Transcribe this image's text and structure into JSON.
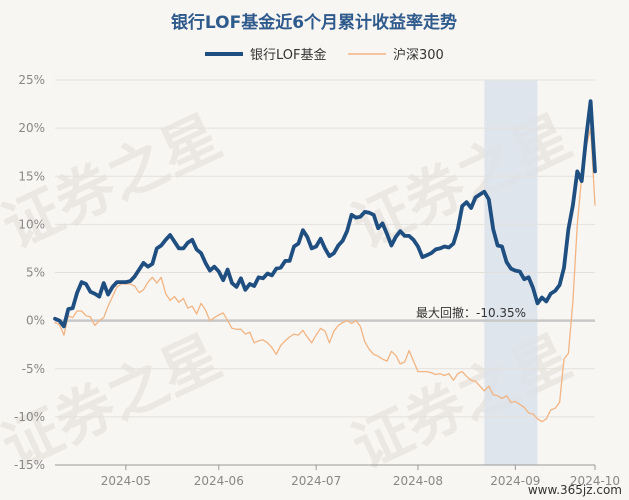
{
  "chart_data": {
    "type": "line",
    "title": "银行LOF基金近6个月累计收益率走势",
    "series": [
      {
        "name": "银行LOF基金",
        "color": "#1f4e80",
        "values": [
          [
            0,
            0.2
          ],
          [
            1,
            0
          ],
          [
            2,
            -0.6
          ],
          [
            3,
            1.2
          ],
          [
            4,
            1.3
          ],
          [
            5,
            2.9
          ],
          [
            6,
            4
          ],
          [
            7,
            3.8
          ],
          [
            8,
            3
          ],
          [
            9,
            2.8
          ],
          [
            10,
            2.5
          ],
          [
            11,
            3.9
          ],
          [
            12,
            2.7
          ],
          [
            13,
            3.5
          ],
          [
            14,
            4
          ],
          [
            15,
            4
          ],
          [
            16,
            4
          ],
          [
            17,
            4.1
          ],
          [
            18,
            4.6
          ],
          [
            19,
            5.3
          ],
          [
            20,
            6
          ],
          [
            21,
            5.6
          ],
          [
            22,
            5.9
          ],
          [
            23,
            7.5
          ],
          [
            24,
            7.8
          ],
          [
            25,
            8.4
          ],
          [
            26,
            8.9
          ],
          [
            27,
            8.2
          ],
          [
            28,
            7.5
          ],
          [
            29,
            7.5
          ],
          [
            30,
            8.1
          ],
          [
            31,
            8.4
          ],
          [
            32,
            7.4
          ],
          [
            33,
            7
          ],
          [
            34,
            6
          ],
          [
            35,
            5.2
          ],
          [
            36,
            5.6
          ],
          [
            37,
            5.1
          ],
          [
            38,
            4.2
          ],
          [
            39,
            5.3
          ],
          [
            40,
            3.9
          ],
          [
            41,
            3.5
          ],
          [
            42,
            4.4
          ],
          [
            43,
            3.2
          ],
          [
            44,
            3.8
          ],
          [
            45,
            3.6
          ],
          [
            46,
            4.5
          ],
          [
            47,
            4.4
          ],
          [
            48,
            4.9
          ],
          [
            49,
            4.7
          ],
          [
            50,
            5.4
          ],
          [
            51,
            5.5
          ],
          [
            52,
            6.2
          ],
          [
            53,
            6.2
          ],
          [
            54,
            7.7
          ],
          [
            55,
            8
          ],
          [
            56,
            9.4
          ],
          [
            57,
            8.7
          ],
          [
            58,
            7.5
          ],
          [
            59,
            7.7
          ],
          [
            60,
            8.5
          ],
          [
            61,
            7.5
          ],
          [
            62,
            6.7
          ],
          [
            63,
            7
          ],
          [
            64,
            7.8
          ],
          [
            65,
            8.3
          ],
          [
            66,
            9.3
          ],
          [
            67,
            11
          ],
          [
            68,
            10.7
          ],
          [
            69,
            10.8
          ],
          [
            70,
            11.3
          ],
          [
            71,
            11.2
          ],
          [
            72,
            11
          ],
          [
            73,
            9.6
          ],
          [
            74,
            10.1
          ],
          [
            75,
            9
          ],
          [
            76,
            7.8
          ],
          [
            77,
            8.7
          ],
          [
            78,
            9.3
          ],
          [
            79,
            8.8
          ],
          [
            80,
            8.8
          ],
          [
            81,
            8.4
          ],
          [
            82,
            7.7
          ],
          [
            83,
            6.6
          ],
          [
            84,
            6.8
          ],
          [
            85,
            7
          ],
          [
            86,
            7.4
          ],
          [
            87,
            7.5
          ],
          [
            88,
            7.7
          ],
          [
            89,
            7.6
          ],
          [
            90,
            8
          ],
          [
            91,
            9.5
          ],
          [
            92,
            11.9
          ],
          [
            93,
            12.3
          ],
          [
            94,
            11.7
          ],
          [
            95,
            12.8
          ],
          [
            96,
            13.1
          ],
          [
            97,
            13.4
          ],
          [
            98,
            12.6
          ],
          [
            99,
            9.5
          ],
          [
            100,
            7.8
          ],
          [
            101,
            7.7
          ],
          [
            102,
            6.1
          ],
          [
            103,
            5.4
          ],
          [
            104,
            5.2
          ],
          [
            105,
            5.1
          ],
          [
            106,
            4.3
          ],
          [
            107,
            4.5
          ],
          [
            108,
            3.4
          ],
          [
            109,
            1.8
          ],
          [
            110,
            2.4
          ],
          [
            111,
            2
          ],
          [
            112,
            2.8
          ],
          [
            113,
            3.1
          ],
          [
            114,
            3.7
          ],
          [
            115,
            5.5
          ],
          [
            116,
            9.5
          ],
          [
            117,
            12
          ],
          [
            118,
            15.5
          ],
          [
            119,
            14.5
          ],
          [
            120,
            19
          ],
          [
            121,
            22.8
          ],
          [
            122,
            15.5
          ]
        ]
      },
      {
        "name": "沪深300",
        "color": "#f2b482",
        "values": [
          [
            0,
            -0.2
          ],
          [
            1,
            -0.4
          ],
          [
            2,
            -1.5
          ],
          [
            3,
            0.5
          ],
          [
            4,
            0.3
          ],
          [
            5,
            1
          ],
          [
            6,
            1
          ],
          [
            7,
            0.5
          ],
          [
            8,
            0.4
          ],
          [
            9,
            -0.5
          ],
          [
            10,
            0
          ],
          [
            11,
            0.3
          ],
          [
            12,
            1.5
          ],
          [
            13,
            2.5
          ],
          [
            14,
            3.5
          ],
          [
            15,
            3.8
          ],
          [
            16,
            3.8
          ],
          [
            17,
            3.8
          ],
          [
            18,
            3.6
          ],
          [
            19,
            2.9
          ],
          [
            20,
            3.2
          ],
          [
            21,
            4
          ],
          [
            22,
            4.5
          ],
          [
            23,
            3.9
          ],
          [
            24,
            4.5
          ],
          [
            25,
            2.8
          ],
          [
            26,
            2.1
          ],
          [
            27,
            2.5
          ],
          [
            28,
            1.9
          ],
          [
            29,
            2.3
          ],
          [
            30,
            1.3
          ],
          [
            31,
            1.5
          ],
          [
            32,
            0.7
          ],
          [
            33,
            1.8
          ],
          [
            34,
            1.1
          ],
          [
            35,
            0
          ],
          [
            36,
            0.3
          ],
          [
            37,
            0.6
          ],
          [
            38,
            0.8
          ],
          [
            39,
            0
          ],
          [
            40,
            -0.8
          ],
          [
            41,
            -0.9
          ],
          [
            42,
            -0.9
          ],
          [
            43,
            -1.4
          ],
          [
            44,
            -1.2
          ],
          [
            45,
            -2.3
          ],
          [
            46,
            -2.1
          ],
          [
            47,
            -2
          ],
          [
            48,
            -2.3
          ],
          [
            49,
            -2.8
          ],
          [
            50,
            -3.5
          ],
          [
            51,
            -2.6
          ],
          [
            52,
            -2.1
          ],
          [
            53,
            -1.7
          ],
          [
            54,
            -1.4
          ],
          [
            55,
            -1.5
          ],
          [
            56,
            -1
          ],
          [
            57,
            -1.7
          ],
          [
            58,
            -2.3
          ],
          [
            59,
            -1.5
          ],
          [
            60,
            -0.8
          ],
          [
            61,
            -1.1
          ],
          [
            62,
            -2.3
          ],
          [
            63,
            -1.1
          ],
          [
            64,
            -0.5
          ],
          [
            65,
            -0.2
          ],
          [
            66,
            0
          ],
          [
            67,
            -0.3
          ],
          [
            68,
            0
          ],
          [
            69,
            -0.6
          ],
          [
            70,
            -2.2
          ],
          [
            71,
            -3
          ],
          [
            72,
            -3.5
          ],
          [
            73,
            -3.7
          ],
          [
            74,
            -4
          ],
          [
            75,
            -4.2
          ],
          [
            76,
            -3.2
          ],
          [
            77,
            -3.6
          ],
          [
            78,
            -4.5
          ],
          [
            79,
            -4.3
          ],
          [
            80,
            -3.1
          ],
          [
            81,
            -4.2
          ],
          [
            82,
            -5.3
          ],
          [
            83,
            -5.3
          ],
          [
            84,
            -5.3
          ],
          [
            85,
            -5.4
          ],
          [
            86,
            -5.6
          ],
          [
            87,
            -5.5
          ],
          [
            88,
            -5.7
          ],
          [
            89,
            -5.5
          ],
          [
            90,
            -6.2
          ],
          [
            91,
            -5.5
          ],
          [
            92,
            -5.3
          ],
          [
            93,
            -5.8
          ],
          [
            94,
            -6.2
          ],
          [
            95,
            -6.3
          ],
          [
            96,
            -6.8
          ],
          [
            97,
            -7.3
          ],
          [
            98,
            -6.8
          ],
          [
            99,
            -7.7
          ],
          [
            100,
            -7.8
          ],
          [
            101,
            -8.1
          ],
          [
            102,
            -7.8
          ],
          [
            103,
            -8.5
          ],
          [
            104,
            -8.4
          ],
          [
            105,
            -8.7
          ],
          [
            106,
            -9
          ],
          [
            107,
            -9.6
          ],
          [
            108,
            -9.7
          ],
          [
            109,
            -10.2
          ],
          [
            110,
            -10.5
          ],
          [
            111,
            -10.2
          ],
          [
            112,
            -9.3
          ],
          [
            113,
            -9.1
          ],
          [
            114,
            -8.5
          ],
          [
            115,
            -4
          ],
          [
            116,
            -3.4
          ],
          [
            117,
            2
          ],
          [
            118,
            10
          ],
          [
            119,
            15
          ],
          [
            120,
            18
          ],
          [
            121,
            20
          ],
          [
            122,
            12
          ]
        ]
      }
    ],
    "x_range": [
      0,
      122
    ],
    "ylim": [
      -15,
      25
    ],
    "y_ticks": [
      25,
      20,
      15,
      10,
      5,
      0,
      -5,
      -10,
      -15
    ],
    "y_tick_labels": [
      "25%",
      "20%",
      "15%",
      "10%",
      "5%",
      "0%",
      "-5%",
      "-10%",
      "-15%"
    ],
    "x_ticks": [
      {
        "x": 16,
        "label": "2024-05"
      },
      {
        "x": 37,
        "label": "2024-06"
      },
      {
        "x": 59,
        "label": "2024-07"
      },
      {
        "x": 82,
        "label": "2024-08"
      },
      {
        "x": 104,
        "label": "2024-09"
      },
      {
        "x": 122,
        "label": "2024-10"
      }
    ],
    "drawdown": {
      "x_start": 97,
      "x_end": 109,
      "label": "最大回撤：-10.35%",
      "fill": "#dbe2ea"
    },
    "legend_position": "top-center",
    "grid": true
  },
  "watermark": {
    "text": "证券之星",
    "corner_text": "www.365jz.com"
  }
}
